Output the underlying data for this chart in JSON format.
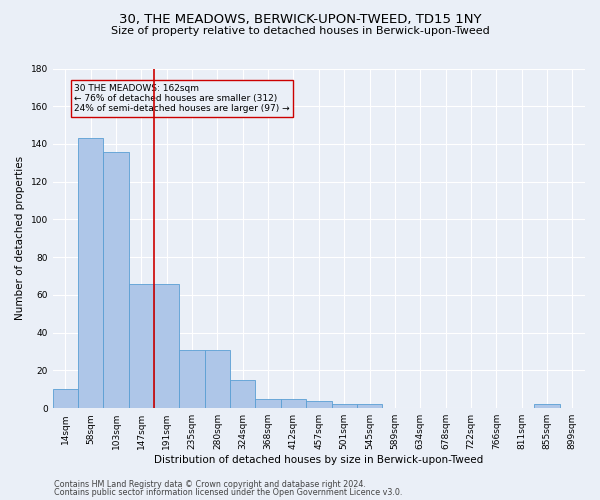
{
  "title": "30, THE MEADOWS, BERWICK-UPON-TWEED, TD15 1NY",
  "subtitle": "Size of property relative to detached houses in Berwick-upon-Tweed",
  "xlabel": "Distribution of detached houses by size in Berwick-upon-Tweed",
  "ylabel": "Number of detached properties",
  "footer_line1": "Contains HM Land Registry data © Crown copyright and database right 2024.",
  "footer_line2": "Contains public sector information licensed under the Open Government Licence v3.0.",
  "bar_labels": [
    "14sqm",
    "58sqm",
    "103sqm",
    "147sqm",
    "191sqm",
    "235sqm",
    "280sqm",
    "324sqm",
    "368sqm",
    "412sqm",
    "457sqm",
    "501sqm",
    "545sqm",
    "589sqm",
    "634sqm",
    "678sqm",
    "722sqm",
    "766sqm",
    "811sqm",
    "855sqm",
    "899sqm"
  ],
  "bar_values": [
    10,
    143,
    136,
    66,
    66,
    31,
    31,
    15,
    5,
    5,
    4,
    2,
    2,
    0,
    0,
    0,
    0,
    0,
    0,
    2,
    0
  ],
  "bar_color": "#aec6e8",
  "bar_edge_color": "#5a9fd4",
  "vline_pos": 3.5,
  "vline_color": "#cc0000",
  "annotation_text": "30 THE MEADOWS: 162sqm\n← 76% of detached houses are smaller (312)\n24% of semi-detached houses are larger (97) →",
  "annotation_box_color": "#cc0000",
  "ylim": [
    0,
    180
  ],
  "yticks": [
    0,
    20,
    40,
    60,
    80,
    100,
    120,
    140,
    160,
    180
  ],
  "background_color": "#eaeff7",
  "grid_color": "#ffffff",
  "title_fontsize": 9.5,
  "subtitle_fontsize": 8.0,
  "axis_label_fontsize": 7.5,
  "tick_fontsize": 6.5,
  "footer_fontsize": 5.8
}
